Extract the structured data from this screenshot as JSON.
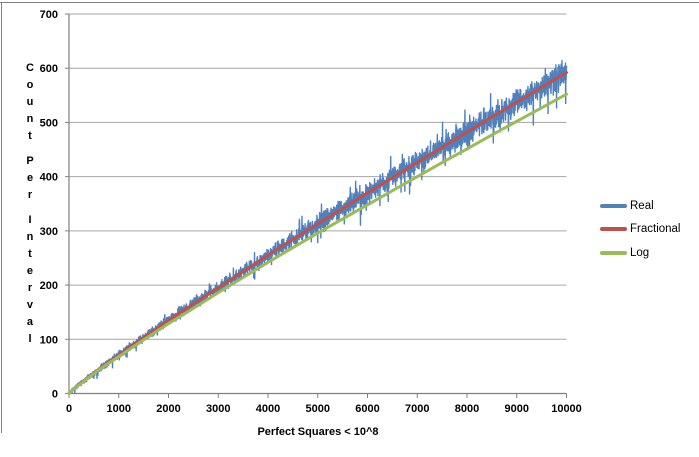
{
  "window": {
    "background": "#FFFFFF"
  },
  "chart_data": {
    "type": "line",
    "title": "",
    "xlabel": "Perfect Squares < 10^8",
    "ylabel": "Count Per Interval",
    "ylabel_layout": "stacked-letters-vertical",
    "xlim": [
      0,
      10000
    ],
    "ylim": [
      0,
      700
    ],
    "x_ticks": [
      0,
      1000,
      2000,
      3000,
      4000,
      5000,
      6000,
      7000,
      8000,
      9000,
      10000
    ],
    "y_ticks": [
      0,
      100,
      200,
      300,
      400,
      500,
      600,
      700
    ],
    "grid": "horizontal",
    "legend_position": "right",
    "colors": {
      "gridline": "#A6A6A6",
      "axis": "#808080",
      "text": "#000000",
      "border": "#7F7F7F"
    },
    "x": [
      0,
      100,
      250,
      500,
      750,
      1000,
      1500,
      2000,
      2500,
      3000,
      3500,
      4000,
      4500,
      5000,
      5500,
      6000,
      6500,
      7000,
      7500,
      8000,
      8500,
      9000,
      9500,
      10000
    ],
    "series": [
      {
        "name": "Real",
        "color": "#4F81BD",
        "style": "noisy",
        "values": [
          0,
          9,
          20,
          38,
          55,
          71,
          103,
          135,
          165,
          195,
          225,
          255,
          284,
          313,
          341,
          370,
          398,
          426,
          454,
          482,
          510,
          537,
          565,
          592
        ],
        "noise": {
          "amplitude_start": 5,
          "amplitude_end": 32,
          "spike_chance": 0.035,
          "spike_scale": 1.9,
          "seed": 11,
          "points": 2400
        }
      },
      {
        "name": "Fractional",
        "color": "#C0504D",
        "style": "smooth",
        "values": [
          0,
          9,
          20,
          38,
          55,
          71,
          103,
          135,
          165,
          195,
          225,
          255,
          284,
          313,
          341,
          370,
          398,
          426,
          454,
          482,
          510,
          537,
          565,
          592
        ]
      },
      {
        "name": "Log",
        "color": "#9BBB59",
        "style": "smooth",
        "values": [
          0,
          9,
          19,
          37,
          53,
          68,
          99,
          129,
          157,
          186,
          214,
          242,
          269,
          296,
          322,
          348,
          374,
          400,
          426,
          451,
          477,
          502,
          527,
          552
        ]
      }
    ]
  }
}
